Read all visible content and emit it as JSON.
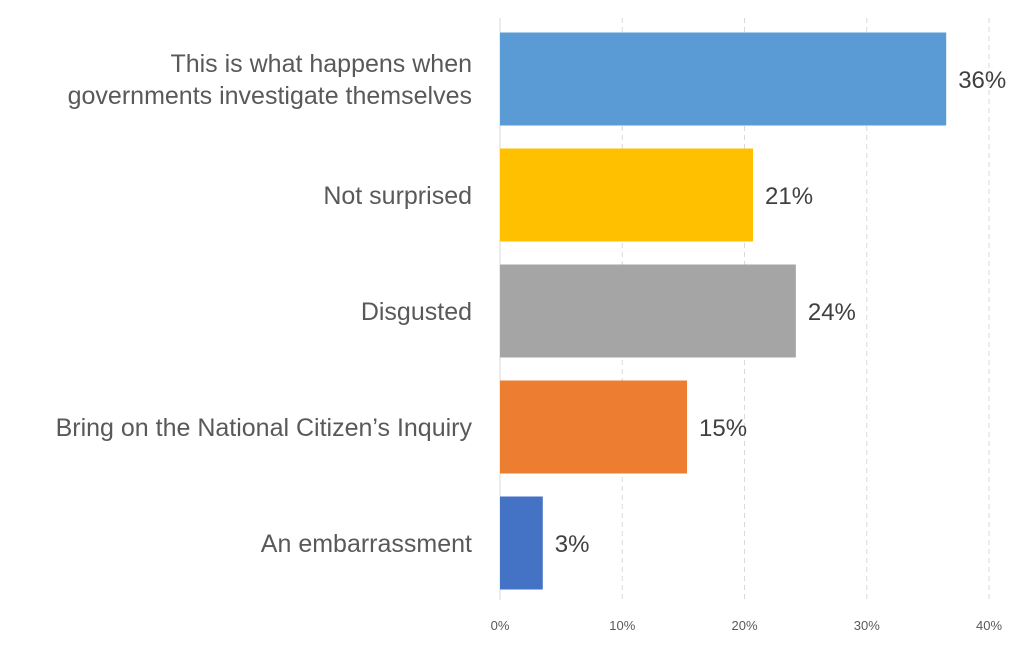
{
  "chart_data": {
    "type": "bar",
    "orientation": "horizontal",
    "categories": [
      [
        "This is what happens when",
        "governments investigate themselves"
      ],
      [
        "Not surprised"
      ],
      [
        "Disgusted"
      ],
      [
        "Bring on the National Citizen’s Inquiry"
      ],
      [
        "An embarrassment"
      ]
    ],
    "values": [
      36.5,
      20.7,
      24.2,
      15.3,
      3.5
    ],
    "value_labels": [
      "36%",
      "21%",
      "24%",
      "15%",
      "3%"
    ],
    "colors": [
      "#5b9bd5",
      "#ffc000",
      "#a5a5a5",
      "#ed7d31",
      "#4472c4"
    ],
    "xlim": [
      0,
      40
    ],
    "x_ticks": [
      0,
      10,
      20,
      30,
      40
    ],
    "x_tick_labels": [
      "0%",
      "10%",
      "20%",
      "30%",
      "40%"
    ],
    "grid": true,
    "title": "",
    "xlabel": "",
    "ylabel": ""
  }
}
